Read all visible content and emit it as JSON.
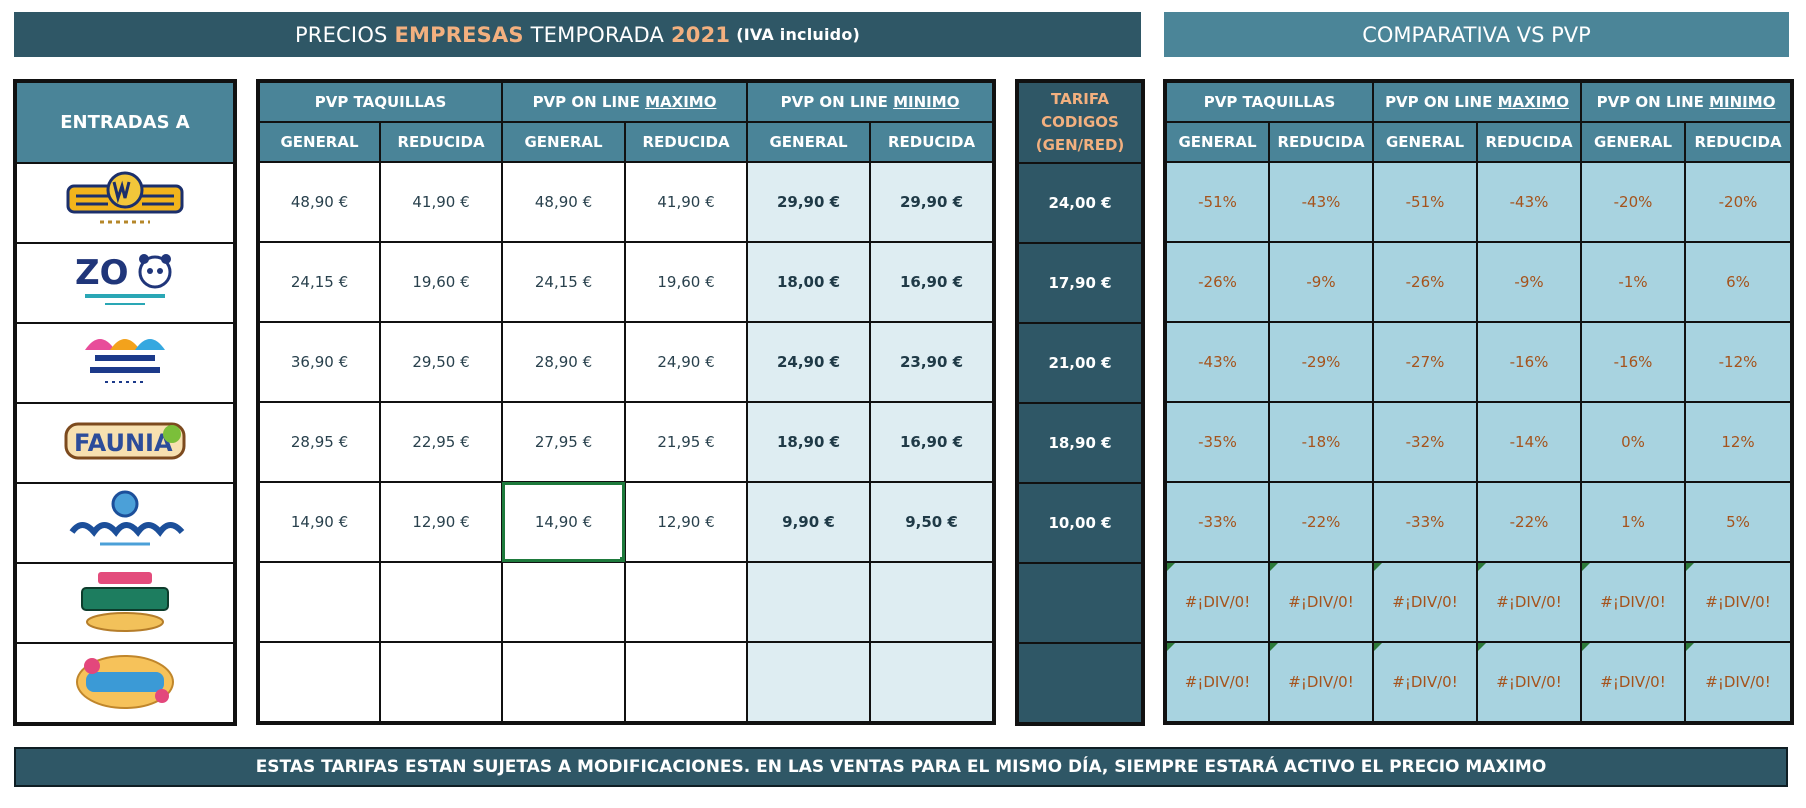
{
  "header": {
    "title_pre": "PRECIOS",
    "title_accent": "EMPRESAS",
    "title_mid": "TEMPORADA",
    "title_year": "2021",
    "title_note": "(IVA incluido)",
    "compare_title": "COMPARATIVA VS PVP"
  },
  "entradas": {
    "header": "ENTRADAS A",
    "parks": [
      {
        "name": "PARQUE WARNER MADRID",
        "logo": "parque-warner-logo"
      },
      {
        "name": "ZOO AQUARIUM MADRID",
        "logo": "zoo-aquarium-logo"
      },
      {
        "name": "PARQUE DE ATRACCIONES MADRID",
        "logo": "parque-atracciones-logo"
      },
      {
        "name": "FAUNIA",
        "logo": "faunia-logo"
      },
      {
        "name": "ATLANTIS AQUARIUM",
        "logo": "atlantis-aquarium-logo"
      },
      {
        "name": "BEACH PARQUE WARNER",
        "logo": "beach-parque-warner-logo"
      },
      {
        "name": "WATER PARK AQUOPOLIS VILLANUEVA DE LA CAÑADA",
        "logo": "aquopolis-logo"
      }
    ]
  },
  "prices": {
    "groups": {
      "taquillas": "PVP TAQUILLAS",
      "online_max_pre": "PVP ON LINE",
      "online_max_u": "MAXIMO",
      "online_min_pre": "PVP ON LINE",
      "online_min_u": "MINIMO"
    },
    "sub": {
      "general": "GENERAL",
      "reducida": "REDUCIDA"
    },
    "rows": [
      [
        "48,90 €",
        "41,90 €",
        "48,90 €",
        "41,90 €",
        "29,90 €",
        "29,90 €"
      ],
      [
        "24,15 €",
        "19,60 €",
        "24,15 €",
        "19,60 €",
        "18,00 €",
        "16,90 €"
      ],
      [
        "36,90 €",
        "29,50 €",
        "28,90 €",
        "24,90 €",
        "24,90 €",
        "23,90 €"
      ],
      [
        "28,95 €",
        "22,95 €",
        "27,95 €",
        "21,95 €",
        "18,90 €",
        "16,90 €"
      ],
      [
        "14,90 €",
        "12,90 €",
        "14,90 €",
        "12,90 €",
        "9,90 €",
        "9,50 €"
      ],
      [
        "",
        "",
        "",
        "",
        "",
        ""
      ],
      [
        "",
        "",
        "",
        "",
        "",
        ""
      ]
    ]
  },
  "tarifa": {
    "line1": "TARIFA",
    "line2": "CODIGOS",
    "line3": "(GEN/RED)",
    "values": [
      "24,00 €",
      "17,90 €",
      "21,00 €",
      "18,90 €",
      "10,00 €",
      "",
      ""
    ]
  },
  "compare": {
    "groups": {
      "taquillas": "PVP TAQUILLAS",
      "online_max_pre": "PVP ON LINE",
      "online_max_u": "MAXIMO",
      "online_min_pre": "PVP ON LINE",
      "online_min_u": "MINIMO"
    },
    "sub": {
      "general": "GENERAL",
      "reducida": "REDUCIDA"
    },
    "rows": [
      [
        "-51%",
        "-43%",
        "-51%",
        "-43%",
        "-20%",
        "-20%"
      ],
      [
        "-26%",
        "-9%",
        "-26%",
        "-9%",
        "-1%",
        "6%"
      ],
      [
        "-43%",
        "-29%",
        "-27%",
        "-16%",
        "-16%",
        "-12%"
      ],
      [
        "-35%",
        "-18%",
        "-32%",
        "-14%",
        "0%",
        "12%"
      ],
      [
        "-33%",
        "-22%",
        "-33%",
        "-22%",
        "1%",
        "5%"
      ],
      [
        "#¡DIV/0!",
        "#¡DIV/0!",
        "#¡DIV/0!",
        "#¡DIV/0!",
        "#¡DIV/0!",
        "#¡DIV/0!"
      ],
      [
        "#¡DIV/0!",
        "#¡DIV/0!",
        "#¡DIV/0!",
        "#¡DIV/0!",
        "#¡DIV/0!",
        "#¡DIV/0!"
      ]
    ]
  },
  "footer": {
    "notice": "ESTAS TARIFAS ESTAN SUJETAS A MODIFICACIONES. EN LAS VENTAS PARA EL MISMO DÍA, SIEMPRE ESTARÁ ACTIVO EL PRECIO MAXIMO"
  },
  "colors": {
    "dark_teal": "#2f5766",
    "mid_teal": "#4a8498",
    "light_blue": "#a8d3e0",
    "pale_blue": "#deedf2",
    "accent_orange": "#f3b07f",
    "percent_text": "#a5531c",
    "selection_green": "#1e7a3c"
  }
}
